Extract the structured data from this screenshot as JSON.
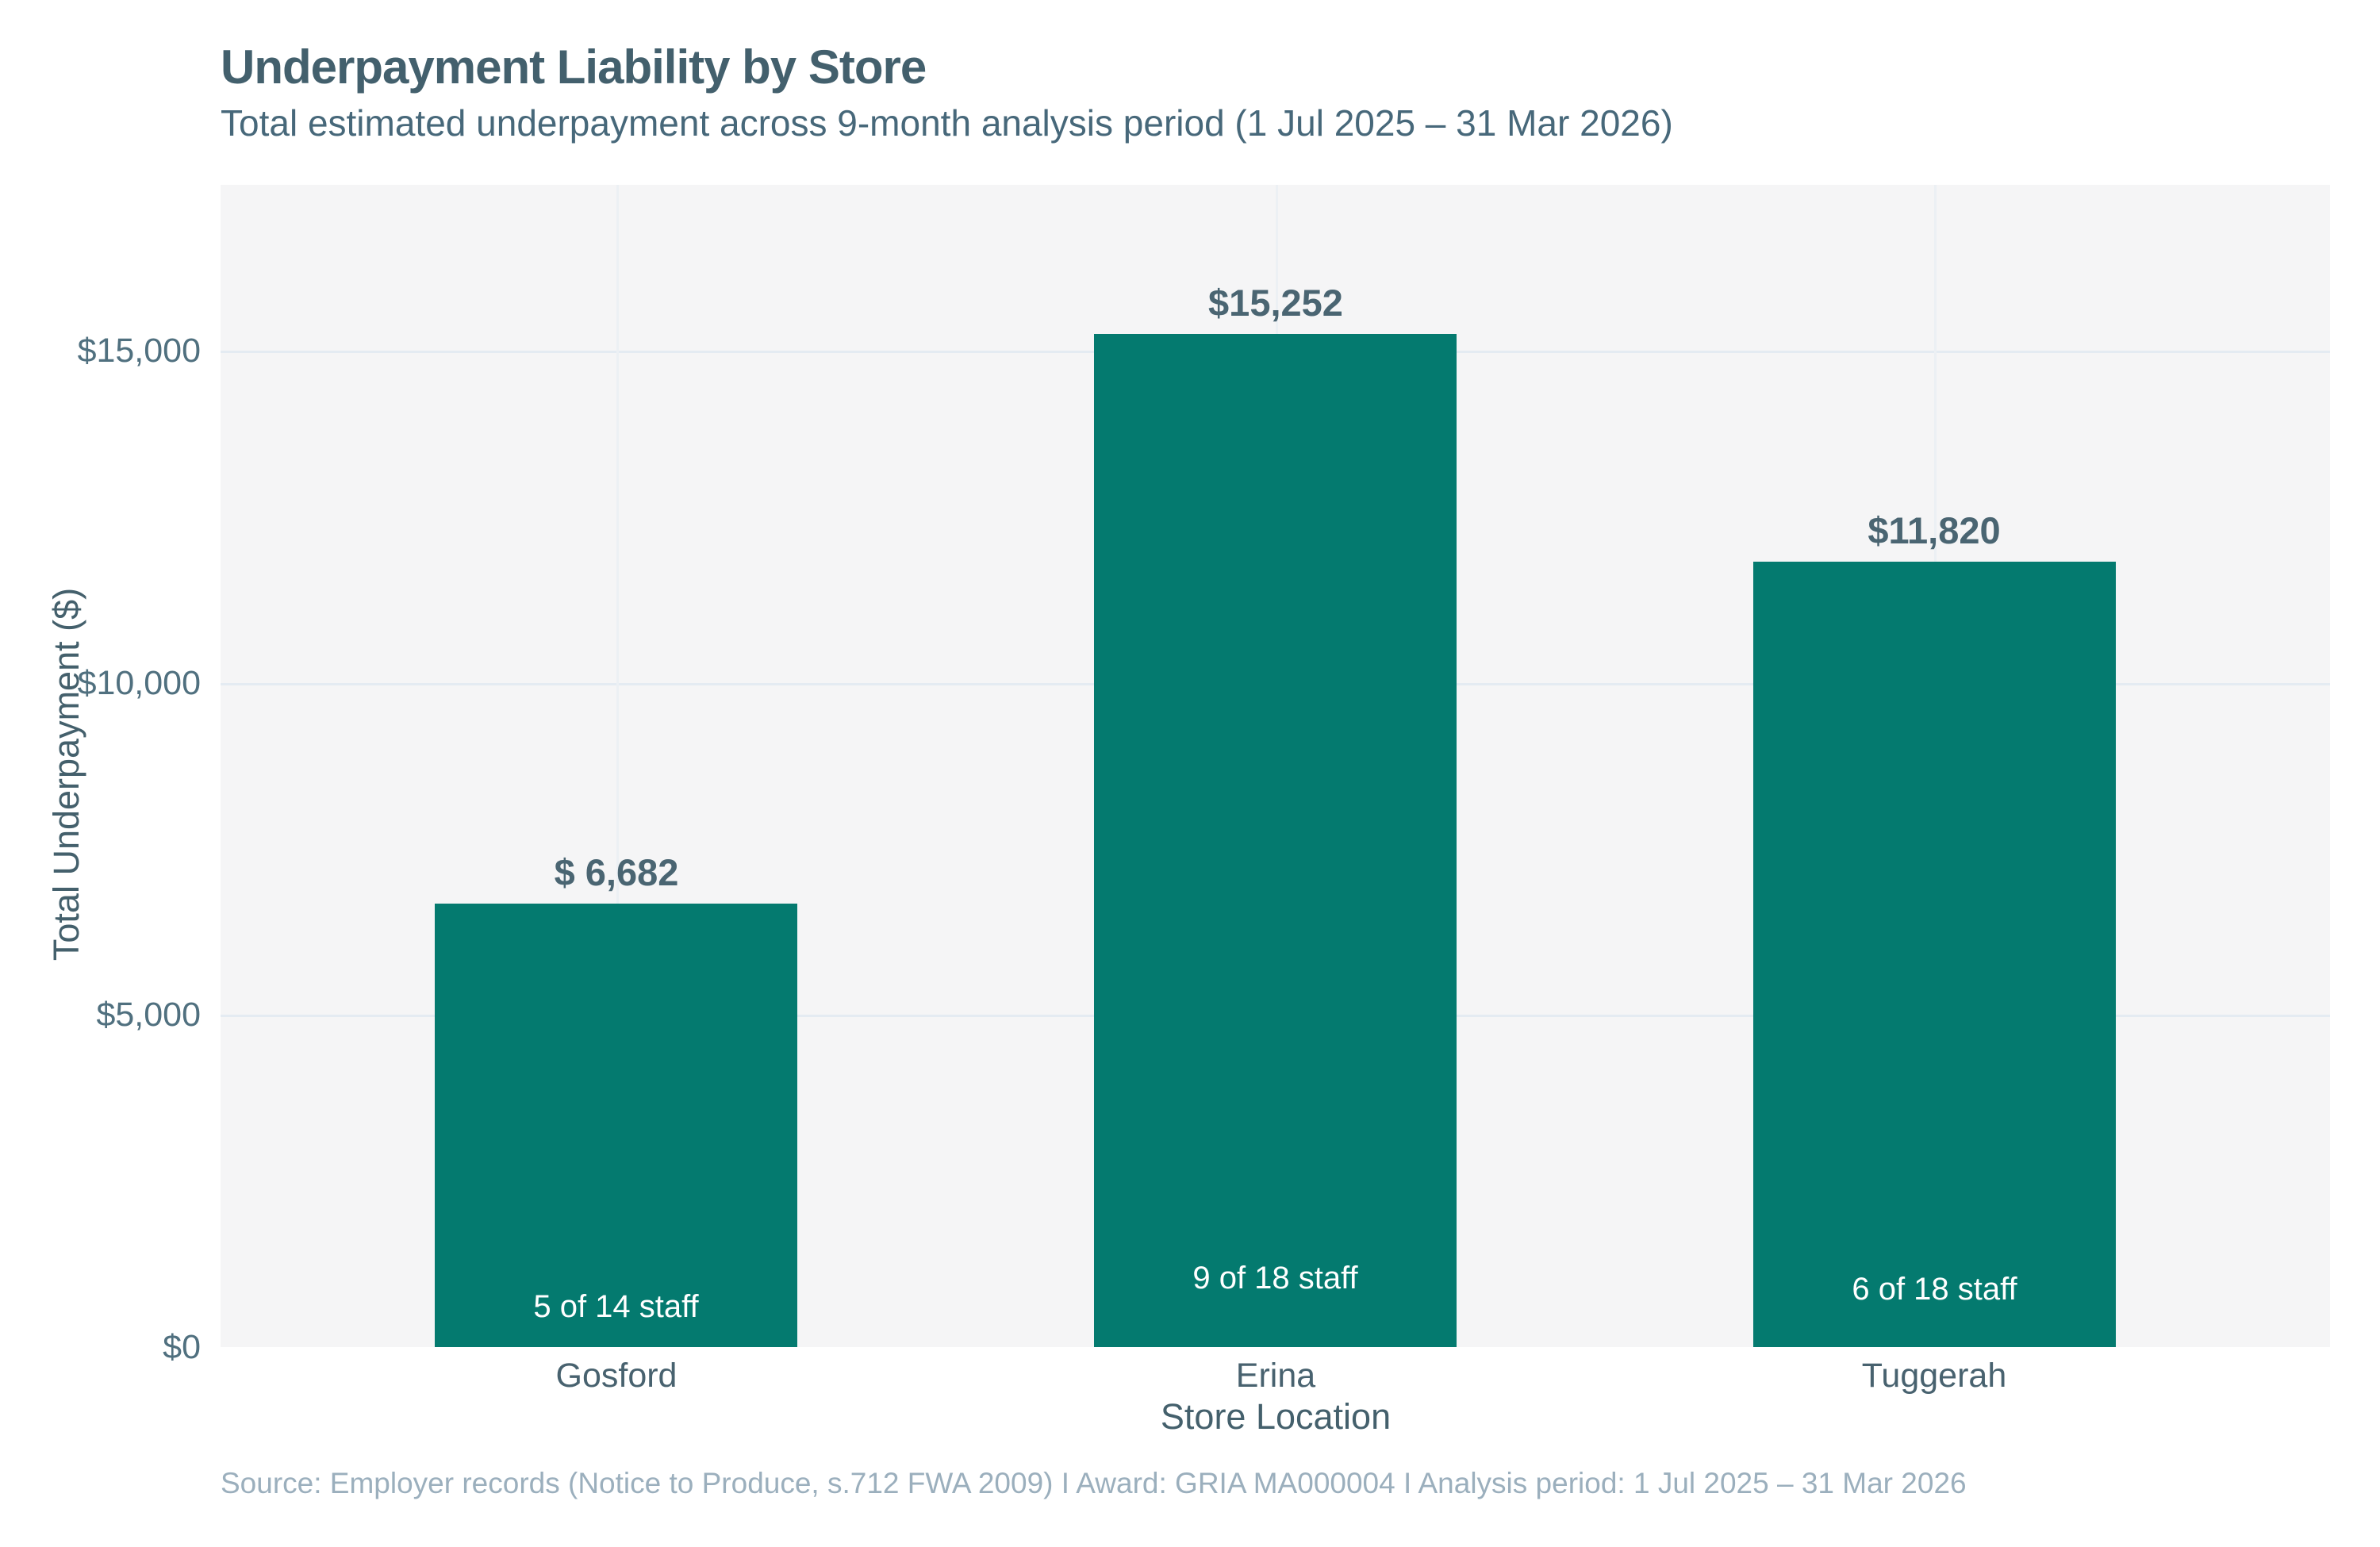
{
  "chart_data": {
    "type": "bar",
    "title": "Underpayment Liability by Store",
    "subtitle": "Total estimated underpayment across 9-month analysis period (1 Jul 2025 – 31 Mar 2026)",
    "xlabel": "Store Location",
    "ylabel": "Total Underpayment ($)",
    "source": "Source: Employer records (Notice to Produce, s.712 FWA 2009) I Award: GRIA MA000004 I Analysis period: 1 Jul 2025 – 31 Mar 2026",
    "categories": [
      "Gosford",
      "Erina",
      "Tuggerah"
    ],
    "values": [
      6682,
      15252,
      11820
    ],
    "value_labels": [
      "$ 6,682",
      "$15,252",
      "$11,820"
    ],
    "bar_annotations": [
      "5 of 14 staff",
      "9 of 18 staff",
      "6 of 18 staff"
    ],
    "ylim": [
      0,
      17500
    ],
    "yticks": [
      0,
      5000,
      10000,
      15000
    ],
    "ytick_labels": [
      "$0",
      "$5,000",
      "$10,000",
      "$15,000"
    ],
    "grid": true,
    "legend": "none",
    "colors": {
      "bar": "#047a6f",
      "panel_background": "#f5f5f6",
      "grid_horizontal": "#e4ebf2",
      "grid_vertical": "#ecf0f4",
      "title_text": "#43606d",
      "tick_text": "#50707f",
      "value_label_text": "#4a6572",
      "annotation_text": "#ffffff",
      "source_text": "#9bafbd"
    }
  }
}
